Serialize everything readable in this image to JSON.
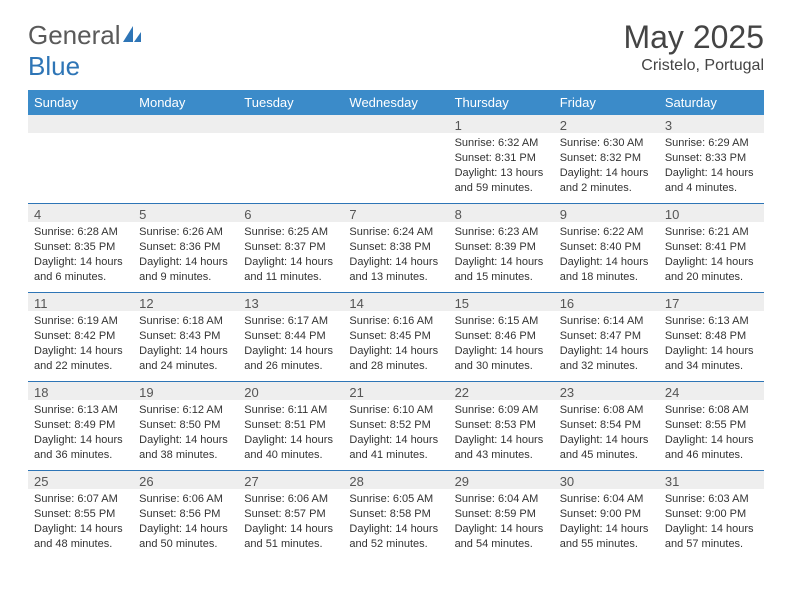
{
  "logo": {
    "text1": "General",
    "text2": "Blue"
  },
  "title": {
    "month": "May 2025",
    "location": "Cristelo, Portugal"
  },
  "weekdays": [
    "Sunday",
    "Monday",
    "Tuesday",
    "Wednesday",
    "Thursday",
    "Friday",
    "Saturday"
  ],
  "colors": {
    "header_bg": "#3b8bc9",
    "border": "#2e75b6",
    "daynum_bg": "#eeeeee"
  },
  "weeks": [
    [
      null,
      null,
      null,
      null,
      {
        "n": "1",
        "sr": "Sunrise: 6:32 AM",
        "ss": "Sunset: 8:31 PM",
        "dl": "Daylight: 13 hours and 59 minutes."
      },
      {
        "n": "2",
        "sr": "Sunrise: 6:30 AM",
        "ss": "Sunset: 8:32 PM",
        "dl": "Daylight: 14 hours and 2 minutes."
      },
      {
        "n": "3",
        "sr": "Sunrise: 6:29 AM",
        "ss": "Sunset: 8:33 PM",
        "dl": "Daylight: 14 hours and 4 minutes."
      }
    ],
    [
      {
        "n": "4",
        "sr": "Sunrise: 6:28 AM",
        "ss": "Sunset: 8:35 PM",
        "dl": "Daylight: 14 hours and 6 minutes."
      },
      {
        "n": "5",
        "sr": "Sunrise: 6:26 AM",
        "ss": "Sunset: 8:36 PM",
        "dl": "Daylight: 14 hours and 9 minutes."
      },
      {
        "n": "6",
        "sr": "Sunrise: 6:25 AM",
        "ss": "Sunset: 8:37 PM",
        "dl": "Daylight: 14 hours and 11 minutes."
      },
      {
        "n": "7",
        "sr": "Sunrise: 6:24 AM",
        "ss": "Sunset: 8:38 PM",
        "dl": "Daylight: 14 hours and 13 minutes."
      },
      {
        "n": "8",
        "sr": "Sunrise: 6:23 AM",
        "ss": "Sunset: 8:39 PM",
        "dl": "Daylight: 14 hours and 15 minutes."
      },
      {
        "n": "9",
        "sr": "Sunrise: 6:22 AM",
        "ss": "Sunset: 8:40 PM",
        "dl": "Daylight: 14 hours and 18 minutes."
      },
      {
        "n": "10",
        "sr": "Sunrise: 6:21 AM",
        "ss": "Sunset: 8:41 PM",
        "dl": "Daylight: 14 hours and 20 minutes."
      }
    ],
    [
      {
        "n": "11",
        "sr": "Sunrise: 6:19 AM",
        "ss": "Sunset: 8:42 PM",
        "dl": "Daylight: 14 hours and 22 minutes."
      },
      {
        "n": "12",
        "sr": "Sunrise: 6:18 AM",
        "ss": "Sunset: 8:43 PM",
        "dl": "Daylight: 14 hours and 24 minutes."
      },
      {
        "n": "13",
        "sr": "Sunrise: 6:17 AM",
        "ss": "Sunset: 8:44 PM",
        "dl": "Daylight: 14 hours and 26 minutes."
      },
      {
        "n": "14",
        "sr": "Sunrise: 6:16 AM",
        "ss": "Sunset: 8:45 PM",
        "dl": "Daylight: 14 hours and 28 minutes."
      },
      {
        "n": "15",
        "sr": "Sunrise: 6:15 AM",
        "ss": "Sunset: 8:46 PM",
        "dl": "Daylight: 14 hours and 30 minutes."
      },
      {
        "n": "16",
        "sr": "Sunrise: 6:14 AM",
        "ss": "Sunset: 8:47 PM",
        "dl": "Daylight: 14 hours and 32 minutes."
      },
      {
        "n": "17",
        "sr": "Sunrise: 6:13 AM",
        "ss": "Sunset: 8:48 PM",
        "dl": "Daylight: 14 hours and 34 minutes."
      }
    ],
    [
      {
        "n": "18",
        "sr": "Sunrise: 6:13 AM",
        "ss": "Sunset: 8:49 PM",
        "dl": "Daylight: 14 hours and 36 minutes."
      },
      {
        "n": "19",
        "sr": "Sunrise: 6:12 AM",
        "ss": "Sunset: 8:50 PM",
        "dl": "Daylight: 14 hours and 38 minutes."
      },
      {
        "n": "20",
        "sr": "Sunrise: 6:11 AM",
        "ss": "Sunset: 8:51 PM",
        "dl": "Daylight: 14 hours and 40 minutes."
      },
      {
        "n": "21",
        "sr": "Sunrise: 6:10 AM",
        "ss": "Sunset: 8:52 PM",
        "dl": "Daylight: 14 hours and 41 minutes."
      },
      {
        "n": "22",
        "sr": "Sunrise: 6:09 AM",
        "ss": "Sunset: 8:53 PM",
        "dl": "Daylight: 14 hours and 43 minutes."
      },
      {
        "n": "23",
        "sr": "Sunrise: 6:08 AM",
        "ss": "Sunset: 8:54 PM",
        "dl": "Daylight: 14 hours and 45 minutes."
      },
      {
        "n": "24",
        "sr": "Sunrise: 6:08 AM",
        "ss": "Sunset: 8:55 PM",
        "dl": "Daylight: 14 hours and 46 minutes."
      }
    ],
    [
      {
        "n": "25",
        "sr": "Sunrise: 6:07 AM",
        "ss": "Sunset: 8:55 PM",
        "dl": "Daylight: 14 hours and 48 minutes."
      },
      {
        "n": "26",
        "sr": "Sunrise: 6:06 AM",
        "ss": "Sunset: 8:56 PM",
        "dl": "Daylight: 14 hours and 50 minutes."
      },
      {
        "n": "27",
        "sr": "Sunrise: 6:06 AM",
        "ss": "Sunset: 8:57 PM",
        "dl": "Daylight: 14 hours and 51 minutes."
      },
      {
        "n": "28",
        "sr": "Sunrise: 6:05 AM",
        "ss": "Sunset: 8:58 PM",
        "dl": "Daylight: 14 hours and 52 minutes."
      },
      {
        "n": "29",
        "sr": "Sunrise: 6:04 AM",
        "ss": "Sunset: 8:59 PM",
        "dl": "Daylight: 14 hours and 54 minutes."
      },
      {
        "n": "30",
        "sr": "Sunrise: 6:04 AM",
        "ss": "Sunset: 9:00 PM",
        "dl": "Daylight: 14 hours and 55 minutes."
      },
      {
        "n": "31",
        "sr": "Sunrise: 6:03 AM",
        "ss": "Sunset: 9:00 PM",
        "dl": "Daylight: 14 hours and 57 minutes."
      }
    ]
  ]
}
